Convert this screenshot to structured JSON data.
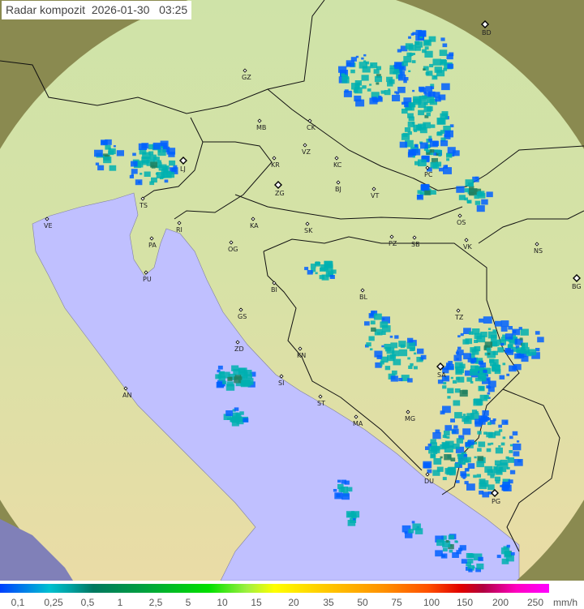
{
  "header": {
    "title": "Radar kompozit",
    "date": "2026-01-30",
    "time": "03:25"
  },
  "legend": {
    "unit": "mm/h",
    "values": [
      "0,1",
      "0,25",
      "0,5",
      "1",
      "2,5",
      "5",
      "10",
      "15",
      "20",
      "35",
      "50",
      "75",
      "100",
      "150",
      "200",
      "250"
    ],
    "colors": {
      "low": "#0040ff",
      "mid": "#00e000",
      "high": "#ff00ff"
    }
  },
  "map": {
    "colors": {
      "sea": "#c0c0ff",
      "land": "#d8dca0",
      "outside_coverage": "#8a8a50",
      "rain_light": "#00b0b0",
      "rain_edge": "#0060ff",
      "rain_moderate": "#208060"
    },
    "cities": [
      {
        "code": "GZ",
        "type": "city"
      },
      {
        "code": "BD",
        "type": "radar"
      },
      {
        "code": "MB",
        "type": "city"
      },
      {
        "code": "CK",
        "type": "city"
      },
      {
        "code": "VZ",
        "type": "city"
      },
      {
        "code": "KR",
        "type": "city"
      },
      {
        "code": "KC",
        "type": "city"
      },
      {
        "code": "LJ",
        "type": "radar"
      },
      {
        "code": "ZG",
        "type": "radar"
      },
      {
        "code": "BJ",
        "type": "city"
      },
      {
        "code": "VT",
        "type": "city"
      },
      {
        "code": "PC",
        "type": "city"
      },
      {
        "code": "TS",
        "type": "city"
      },
      {
        "code": "VE",
        "type": "city"
      },
      {
        "code": "RI",
        "type": "city"
      },
      {
        "code": "KA",
        "type": "city"
      },
      {
        "code": "SK",
        "type": "city"
      },
      {
        "code": "OS",
        "type": "city"
      },
      {
        "code": "PA",
        "type": "city"
      },
      {
        "code": "OG",
        "type": "city"
      },
      {
        "code": "PZ",
        "type": "city"
      },
      {
        "code": "SB",
        "type": "city"
      },
      {
        "code": "VK",
        "type": "city"
      },
      {
        "code": "NS",
        "type": "city"
      },
      {
        "code": "PU",
        "type": "city"
      },
      {
        "code": "BI",
        "type": "city"
      },
      {
        "code": "BL",
        "type": "city"
      },
      {
        "code": "BG",
        "type": "radar"
      },
      {
        "code": "TZ",
        "type": "city"
      },
      {
        "code": "GS",
        "type": "city"
      },
      {
        "code": "KN",
        "type": "city"
      },
      {
        "code": "ZD",
        "type": "city"
      },
      {
        "code": "SI",
        "type": "city"
      },
      {
        "code": "AN",
        "type": "city"
      },
      {
        "code": "ST",
        "type": "city"
      },
      {
        "code": "MG",
        "type": "city"
      },
      {
        "code": "MA",
        "type": "city"
      },
      {
        "code": "SA",
        "type": "radar"
      },
      {
        "code": "DU",
        "type": "city"
      },
      {
        "code": "PG",
        "type": "radar"
      }
    ]
  }
}
